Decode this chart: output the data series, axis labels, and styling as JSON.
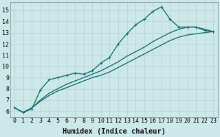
{
  "xlabel": "Humidex (Indice chaleur)",
  "background_color": "#cce8e8",
  "grid_color": "#c0d8d8",
  "line_color": "#1a7070",
  "xlim": [
    -0.5,
    23.5
  ],
  "ylim": [
    5.5,
    15.7
  ],
  "xticks": [
    0,
    1,
    2,
    3,
    4,
    5,
    6,
    7,
    8,
    9,
    10,
    11,
    12,
    13,
    14,
    15,
    16,
    17,
    18,
    19,
    20,
    21,
    22,
    23
  ],
  "yticks": [
    6,
    7,
    8,
    9,
    10,
    11,
    12,
    13,
    14,
    15
  ],
  "series": [
    {
      "y": [
        6.3,
        5.9,
        6.2,
        7.9,
        8.8,
        9.0,
        9.2,
        9.4,
        9.3,
        9.6,
        10.3,
        10.8,
        12.0,
        12.9,
        13.7,
        14.2,
        14.9,
        15.3,
        14.2,
        13.5,
        13.5,
        13.5,
        13.2,
        13.1
      ],
      "marker": true,
      "lw": 1.0
    },
    {
      "y": [
        6.3,
        5.9,
        6.3,
        7.0,
        7.6,
        8.0,
        8.4,
        8.7,
        9.0,
        9.3,
        9.6,
        10.0,
        10.4,
        10.9,
        11.3,
        11.7,
        12.2,
        12.6,
        13.0,
        13.3,
        13.5,
        13.5,
        13.3,
        13.1
      ],
      "marker": false,
      "lw": 1.0
    },
    {
      "y": [
        6.3,
        5.9,
        6.3,
        6.9,
        7.4,
        7.8,
        8.1,
        8.4,
        8.7,
        9.0,
        9.2,
        9.5,
        9.9,
        10.3,
        10.7,
        11.1,
        11.5,
        11.9,
        12.3,
        12.6,
        12.8,
        12.9,
        13.0,
        13.1
      ],
      "marker": false,
      "lw": 1.0
    }
  ],
  "fontsize_ticks": 6,
  "fontsize_label": 7.5
}
